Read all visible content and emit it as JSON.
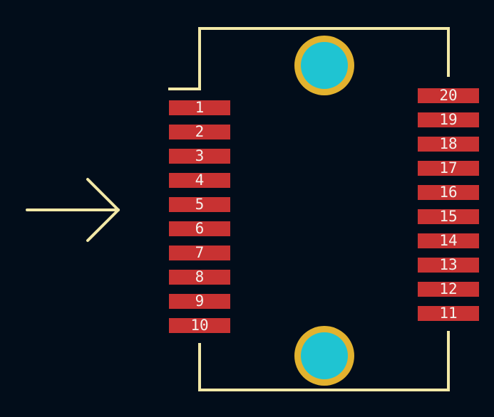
{
  "colors": {
    "background": "#020d1a",
    "silkscreen": "#f2e8a6",
    "pad": "#c83232",
    "pad_text": "#f4f0ea",
    "hole_ring": "#e3b22e",
    "hole_center": "#1fc4d2"
  },
  "indicator": {
    "icon": "right-arrow-icon"
  },
  "left_pads": [
    {
      "label": "1"
    },
    {
      "label": "2"
    },
    {
      "label": "3"
    },
    {
      "label": "4"
    },
    {
      "label": "5"
    },
    {
      "label": "6"
    },
    {
      "label": "7"
    },
    {
      "label": "8"
    },
    {
      "label": "9"
    },
    {
      "label": "10"
    }
  ],
  "right_pads": [
    {
      "label": "20"
    },
    {
      "label": "19"
    },
    {
      "label": "18"
    },
    {
      "label": "17"
    },
    {
      "label": "16"
    },
    {
      "label": "15"
    },
    {
      "label": "14"
    },
    {
      "label": "13"
    },
    {
      "label": "12"
    },
    {
      "label": "11"
    }
  ]
}
